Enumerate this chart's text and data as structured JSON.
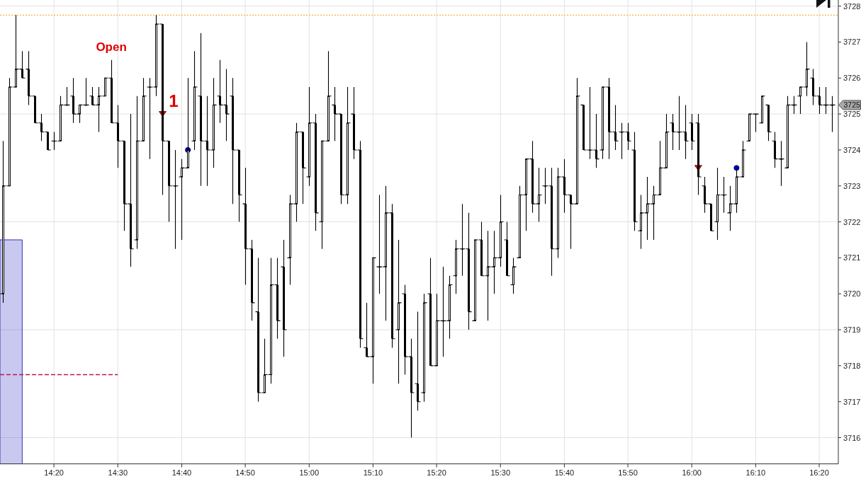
{
  "chart_data": {
    "type": "candlestick",
    "xlim": [
      14.192,
      16.383
    ],
    "xticks": [
      {
        "value": 14.333,
        "label": "14:20"
      },
      {
        "value": 14.5,
        "label": "14:30"
      },
      {
        "value": 14.667,
        "label": "14:40"
      },
      {
        "value": 14.833,
        "label": "14:50"
      },
      {
        "value": 15,
        "label": "15:00"
      },
      {
        "value": 15.167,
        "label": "15:10"
      },
      {
        "value": 15.333,
        "label": "15:20"
      },
      {
        "value": 15.5,
        "label": "15:30"
      },
      {
        "value": 15.667,
        "label": "15:40"
      },
      {
        "value": 15.833,
        "label": "15:50"
      },
      {
        "value": 16,
        "label": "16:00"
      },
      {
        "value": 16.167,
        "label": "16:10"
      },
      {
        "value": 16.333,
        "label": "16:20"
      }
    ],
    "ylim": [
      3715.27,
      3728.17
    ],
    "yticks": [
      3716,
      3717,
      3718,
      3719,
      3720,
      3721,
      3722,
      3723,
      3724,
      3725,
      3726,
      3727,
      3728
    ],
    "grid": true,
    "series": [
      {
        "type": "candlestick",
        "color": "#000000",
        "x": [
          14.2,
          14.217,
          14.233,
          14.25,
          14.267,
          14.283,
          14.3,
          14.317,
          14.333,
          14.35,
          14.367,
          14.383,
          14.4,
          14.417,
          14.433,
          14.45,
          14.467,
          14.483,
          14.5,
          14.517,
          14.533,
          14.55,
          14.567,
          14.583,
          14.6,
          14.617,
          14.633,
          14.65,
          14.667,
          14.683,
          14.7,
          14.717,
          14.733,
          14.75,
          14.767,
          14.783,
          14.8,
          14.817,
          14.833,
          14.85,
          14.867,
          14.883,
          14.9,
          14.917,
          14.933,
          14.95,
          14.967,
          14.983,
          15,
          15.017,
          15.033,
          15.05,
          15.067,
          15.083,
          15.1,
          15.117,
          15.133,
          15.15,
          15.167,
          15.183,
          15.2,
          15.217,
          15.233,
          15.25,
          15.267,
          15.283,
          15.3,
          15.317,
          15.333,
          15.35,
          15.367,
          15.383,
          15.4,
          15.417,
          15.433,
          15.45,
          15.467,
          15.483,
          15.5,
          15.517,
          15.533,
          15.55,
          15.567,
          15.583,
          15.6,
          15.617,
          15.633,
          15.65,
          15.667,
          15.683,
          15.7,
          15.717,
          15.733,
          15.75,
          15.767,
          15.783,
          15.8,
          15.817,
          15.833,
          15.85,
          15.867,
          15.883,
          15.9,
          15.917,
          15.933,
          15.95,
          15.967,
          15.983,
          16,
          16.017,
          16.033,
          16.05,
          16.067,
          16.083,
          16.1,
          16.117,
          16.133,
          16.15,
          16.167,
          16.183,
          16.2,
          16.217,
          16.233,
          16.25,
          16.267,
          16.283,
          16.3,
          16.317,
          16.333,
          16.35,
          16.367
        ],
        "ohlc": [
          [
            3720,
            3724.25,
            3719.75,
            3723
          ],
          [
            3723,
            3726,
            3723,
            3725.75
          ],
          [
            3725.75,
            3727.75,
            3725.75,
            3726.25
          ],
          [
            3726.25,
            3726.75,
            3726,
            3726
          ],
          [
            3726.25,
            3726.75,
            3725.25,
            3725.5
          ],
          [
            3725.5,
            3725.5,
            3724.75,
            3724.75
          ],
          [
            3724.75,
            3725,
            3724.25,
            3724.5
          ],
          [
            3724.5,
            3724.5,
            3724,
            3724
          ],
          [
            3724.25,
            3724.5,
            3724,
            3724.25
          ],
          [
            3724.25,
            3725.5,
            3724.25,
            3725.25
          ],
          [
            3725.25,
            3725.75,
            3725.25,
            3725.25
          ],
          [
            3725.5,
            3726,
            3724.75,
            3725
          ],
          [
            3725,
            3725.25,
            3724.75,
            3725.25
          ],
          [
            3725.25,
            3726,
            3725.25,
            3725.25
          ],
          [
            3725.5,
            3725.75,
            3725.25,
            3725.25
          ],
          [
            3725.25,
            3725.75,
            3724.5,
            3725.5
          ],
          [
            3725.5,
            3726,
            3725.5,
            3726
          ],
          [
            3726,
            3726.5,
            3724.75,
            3724.75
          ],
          [
            3724.75,
            3725.25,
            3723.5,
            3724.25
          ],
          [
            3724.25,
            3724.25,
            3721.75,
            3722.5
          ],
          [
            3722.5,
            3725,
            3720.75,
            3721.25
          ],
          [
            3721.5,
            3725.5,
            3721.25,
            3724.25
          ],
          [
            3724.25,
            3726,
            3724.25,
            3725.5
          ],
          [
            3725.75,
            3726,
            3723.75,
            3725.75
          ],
          [
            3725.75,
            3727.75,
            3725.5,
            3727.5
          ],
          [
            3727.5,
            3727.5,
            3722.75,
            3724.25
          ],
          [
            3724.25,
            3724.25,
            3722,
            3723
          ],
          [
            3723,
            3724,
            3721.25,
            3723
          ],
          [
            3723.25,
            3723.75,
            3721.5,
            3723.5
          ],
          [
            3723.5,
            3726,
            3723.5,
            3724
          ],
          [
            3724.25,
            3726.75,
            3724,
            3725.75
          ],
          [
            3725.5,
            3727.25,
            3723,
            3724.25
          ],
          [
            3724.25,
            3725.5,
            3723,
            3724
          ],
          [
            3724,
            3726,
            3723.5,
            3725.25
          ],
          [
            3725.5,
            3726.5,
            3724.75,
            3725.25
          ],
          [
            3725.25,
            3726.25,
            3724.25,
            3725
          ],
          [
            3725.5,
            3726,
            3722.5,
            3724
          ],
          [
            3724,
            3724,
            3722,
            3722.75
          ],
          [
            3722.5,
            3723.5,
            3720.25,
            3721.25
          ],
          [
            3721.25,
            3721.5,
            3719.25,
            3719.75
          ],
          [
            3719.5,
            3721,
            3717,
            3717.25
          ],
          [
            3717.25,
            3718.75,
            3717.25,
            3717.75
          ],
          [
            3717.75,
            3721,
            3717.5,
            3720.25
          ],
          [
            3720.25,
            3721,
            3718.75,
            3719.25
          ],
          [
            3720.75,
            3721.5,
            3718.25,
            3719
          ],
          [
            3721,
            3722.75,
            3720.25,
            3722.5
          ],
          [
            3722.5,
            3724.75,
            3722,
            3724.5
          ],
          [
            3724.5,
            3724.5,
            3722.5,
            3723.5
          ],
          [
            3723.25,
            3725.75,
            3723,
            3724.75
          ],
          [
            3724.75,
            3725,
            3721.75,
            3722.25
          ],
          [
            3722,
            3724.25,
            3721.25,
            3724.25
          ],
          [
            3724.25,
            3726.75,
            3724.25,
            3725.5
          ],
          [
            3725.25,
            3725.75,
            3724.25,
            3725
          ],
          [
            3725,
            3725,
            3722.5,
            3722.75
          ],
          [
            3722.75,
            3725.75,
            3722.5,
            3724.75
          ],
          [
            3725,
            3725.75,
            3723.75,
            3724
          ],
          [
            3724,
            3724.25,
            3718.5,
            3718.75
          ],
          [
            3718.5,
            3719.75,
            3718.25,
            3718.25
          ],
          [
            3718.25,
            3721,
            3717.5,
            3721
          ],
          [
            3720.75,
            3722.75,
            3720,
            3720.75
          ],
          [
            3720.75,
            3723,
            3719.25,
            3722.25
          ],
          [
            3722.25,
            3722.5,
            3718.5,
            3718.75
          ],
          [
            3719,
            3721.5,
            3717.5,
            3719.75
          ],
          [
            3720,
            3720.25,
            3717.75,
            3718.25
          ],
          [
            3718.25,
            3718.75,
            3716,
            3717.25
          ],
          [
            3717.5,
            3719.5,
            3716.75,
            3717
          ],
          [
            3717.25,
            3720,
            3717,
            3719.75
          ],
          [
            3720,
            3721,
            3718,
            3718
          ],
          [
            3718,
            3720,
            3718,
            3719.25
          ],
          [
            3719.25,
            3720.75,
            3718.25,
            3719.25
          ],
          [
            3719.25,
            3720.5,
            3718.75,
            3720.25
          ],
          [
            3720.5,
            3721.5,
            3720,
            3721.25
          ],
          [
            3721.25,
            3722.5,
            3720.5,
            3721.25
          ],
          [
            3721.25,
            3722.25,
            3719,
            3719.5
          ],
          [
            3719.25,
            3721.5,
            3719.25,
            3721.5
          ],
          [
            3721.5,
            3722,
            3720.5,
            3720.5
          ],
          [
            3720.5,
            3721.75,
            3719.25,
            3720.75
          ],
          [
            3720.75,
            3721.75,
            3720,
            3721
          ],
          [
            3721,
            3722.75,
            3720.75,
            3722
          ],
          [
            3721.5,
            3722,
            3720.5,
            3720.5
          ],
          [
            3720.25,
            3721,
            3720,
            3720.75
          ],
          [
            3721,
            3723,
            3721,
            3722.75
          ],
          [
            3722.75,
            3723.75,
            3721.75,
            3723.75
          ],
          [
            3723.75,
            3724.25,
            3722.25,
            3722.5
          ],
          [
            3722.5,
            3723.5,
            3722,
            3722.75
          ],
          [
            3723,
            3723.5,
            3722.5,
            3723
          ],
          [
            3723,
            3723.5,
            3720.5,
            3721.25
          ],
          [
            3721.25,
            3723.5,
            3721,
            3723.25
          ],
          [
            3723.25,
            3723.75,
            3722.25,
            3722.75
          ],
          [
            3722.75,
            3722.75,
            3721.25,
            3722.5
          ],
          [
            3722.5,
            3726,
            3722.5,
            3725.5
          ],
          [
            3725.25,
            3725.25,
            3724,
            3724
          ],
          [
            3724,
            3725.75,
            3723.75,
            3724
          ],
          [
            3724,
            3725,
            3723.5,
            3723.75
          ],
          [
            3724,
            3725.75,
            3723.75,
            3725.75
          ],
          [
            3725.75,
            3726,
            3723.75,
            3724.5
          ],
          [
            3724.5,
            3725.25,
            3724,
            3724.25
          ],
          [
            3724.5,
            3724.75,
            3723.75,
            3724.5
          ],
          [
            3724.5,
            3724.75,
            3724,
            3724.25
          ],
          [
            3724,
            3724.5,
            3721.75,
            3722
          ],
          [
            3721.75,
            3722.75,
            3721.25,
            3722.25
          ],
          [
            3722.25,
            3723.25,
            3721.5,
            3722.5
          ],
          [
            3722.5,
            3723,
            3721.5,
            3722.75
          ],
          [
            3722.75,
            3724.25,
            3722.75,
            3723.5
          ],
          [
            3723.5,
            3725,
            3723.5,
            3724.5
          ],
          [
            3724.75,
            3725,
            3724,
            3724.5
          ],
          [
            3724.5,
            3725.5,
            3724,
            3724.5
          ],
          [
            3724.5,
            3725.25,
            3723.75,
            3724.25
          ],
          [
            3724.75,
            3725,
            3724,
            3724.25
          ],
          [
            3724.75,
            3725,
            3722.75,
            3723.25
          ],
          [
            3723,
            3723.25,
            3722.25,
            3722.5
          ],
          [
            3722.5,
            3722.5,
            3721.75,
            3721.75
          ],
          [
            3722,
            3723.5,
            3721.5,
            3722.75
          ],
          [
            3722.75,
            3723.25,
            3722.25,
            3722.75
          ],
          [
            3722.25,
            3723,
            3721.75,
            3722.5
          ],
          [
            3722.5,
            3723.5,
            3722.25,
            3723.25
          ],
          [
            3723.25,
            3724.25,
            3723.25,
            3724
          ],
          [
            3724.25,
            3725,
            3724.25,
            3725
          ],
          [
            3725,
            3725,
            3724.5,
            3725
          ],
          [
            3724.75,
            3725.5,
            3724.75,
            3725.5
          ],
          [
            3725.25,
            3725.25,
            3724.25,
            3724.5
          ],
          [
            3724.25,
            3724.5,
            3723.5,
            3723.75
          ],
          [
            3723.75,
            3724.25,
            3723,
            3723.75
          ],
          [
            3723.5,
            3725.5,
            3723.5,
            3725.25
          ],
          [
            3725.25,
            3725.5,
            3725,
            3725.25
          ],
          [
            3725.5,
            3725.75,
            3725,
            3725.75
          ],
          [
            3725.75,
            3727,
            3725.5,
            3726.25
          ],
          [
            3726,
            3726.25,
            3725.25,
            3725.5
          ],
          [
            3725.5,
            3725.75,
            3725,
            3725.25
          ],
          [
            3725.25,
            3725.75,
            3725,
            3725.25
          ],
          [
            3725.25,
            3725.5,
            3724.5,
            3725.25
          ]
        ]
      },
      {
        "type": "line",
        "color": "#c8104a",
        "line_style": "dashed",
        "marker": "none",
        "x": [
          14.192,
          14.5
        ],
        "values": [
          3717.75,
          3717.75
        ]
      },
      {
        "type": "scatter",
        "color": "#e00000",
        "marker": "triangle",
        "x": [
          14.617,
          16.017
        ],
        "values": [
          3725,
          3723.5
        ]
      },
      {
        "type": "scatter",
        "color": "#0000cc",
        "marker": "circle",
        "x": [
          14.683,
          16.117
        ],
        "values": [
          3724,
          3723.5
        ]
      },
      {
        "type": "area",
        "color": "#3030c0",
        "x": [
          14.192,
          14.25
        ],
        "values": [
          3721.5,
          3721.5
        ]
      }
    ],
    "ref_lines": [
      {
        "axis": "y",
        "value": 3727.75,
        "color": "#f0a020",
        "line_style": "dotted"
      }
    ],
    "annotations": [
      {
        "text": "Open",
        "x": 14.483,
        "y": 3726.5
      },
      {
        "text": "1",
        "x": 14.617,
        "y": 3725
      },
      "3725"
    ]
  }
}
